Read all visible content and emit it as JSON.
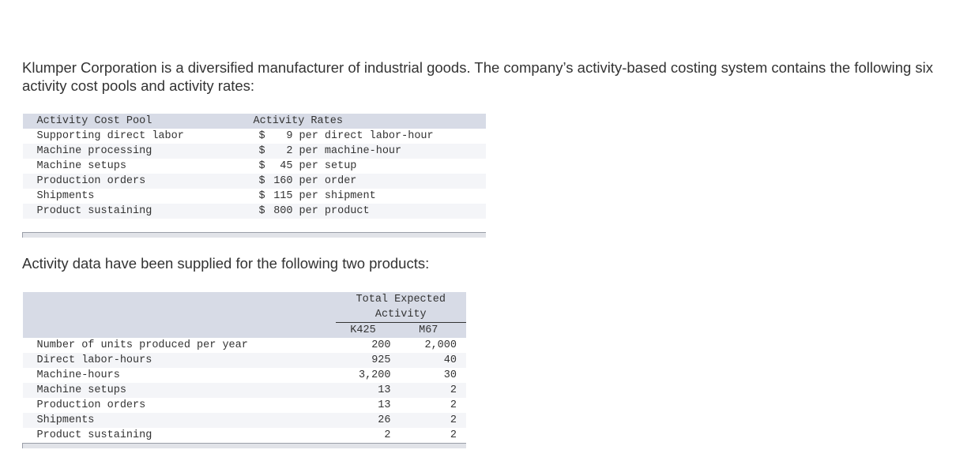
{
  "intro": "Klumper Corporation is a diversified manufacturer of industrial goods. The company’s activity-based costing system contains the following six activity cost pools and activity rates:",
  "rates_table": {
    "headers": {
      "pool": "Activity Cost Pool",
      "rates": "Activity Rates"
    },
    "rows": [
      {
        "pool": "Supporting direct labor",
        "currency": "$",
        "amount": "9",
        "unit": "per direct labor-hour"
      },
      {
        "pool": "Machine processing",
        "currency": "$",
        "amount": "2",
        "unit": "per machine-hour"
      },
      {
        "pool": "Machine setups",
        "currency": "$",
        "amount": "45",
        "unit": "per setup"
      },
      {
        "pool": "Production orders",
        "currency": "$",
        "amount": "160",
        "unit": "per order"
      },
      {
        "pool": "Shipments",
        "currency": "$",
        "amount": "115",
        "unit": "per shipment"
      },
      {
        "pool": "Product sustaining",
        "currency": "$",
        "amount": "800",
        "unit": "per product"
      }
    ]
  },
  "intro2": "Activity data have been supplied for the following two products:",
  "activity_table": {
    "group_header_line1": "Total Expected",
    "group_header_line2": "Activity",
    "columns": [
      "K425",
      "M67"
    ],
    "rows": [
      {
        "label": "Number of units produced per year",
        "k425": "200",
        "m67": "2,000"
      },
      {
        "label": "Direct labor-hours",
        "k425": "925",
        "m67": "40"
      },
      {
        "label": "Machine-hours",
        "k425": "3,200",
        "m67": "30"
      },
      {
        "label": "Machine setups",
        "k425": "13",
        "m67": "2"
      },
      {
        "label": "Production orders",
        "k425": "13",
        "m67": "2"
      },
      {
        "label": "Shipments",
        "k425": "26",
        "m67": "2"
      },
      {
        "label": "Product sustaining",
        "k425": "2",
        "m67": "2"
      }
    ]
  }
}
